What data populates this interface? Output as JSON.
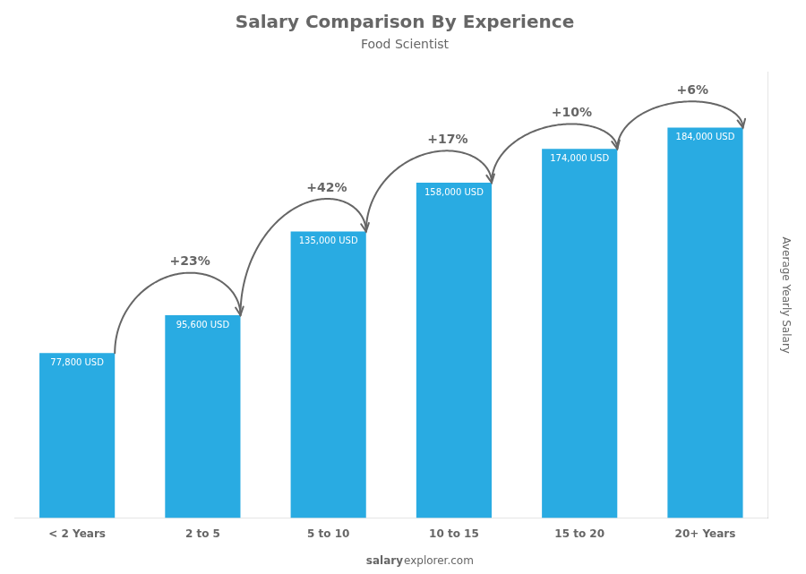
{
  "chart_data": {
    "type": "bar",
    "title": "Salary Comparison By Experience",
    "subtitle": "Food Scientist",
    "y_label": "Average Yearly Salary",
    "categories": [
      "< 2 Years",
      "2 to 5",
      "5 to 10",
      "10 to 15",
      "15 to 20",
      "20+ Years"
    ],
    "values": [
      77800,
      95600,
      135000,
      158000,
      174000,
      184000
    ],
    "value_labels": [
      "77,800 USD",
      "95,600 USD",
      "135,000 USD",
      "158,000 USD",
      "174,000 USD",
      "184,000 USD"
    ],
    "data_labels": true,
    "color": "#29ABE2",
    "ylim": [
      0,
      210000
    ],
    "tick_labels": "x",
    "grid": false,
    "annotations": [
      {
        "text": "+23%",
        "from": "< 2 Years",
        "to": "2 to 5",
        "y": 115000
      },
      {
        "text": "+42%",
        "from": "2 to 5",
        "to": "5 to 10",
        "y": 148000
      },
      {
        "text": "+17%",
        "from": "5 to 10",
        "to": "10 to 15",
        "y": 172000
      },
      {
        "text": "+10%",
        "from": "10 to 15",
        "to": "15 to 20",
        "y": 185000
      },
      {
        "text": "+6%",
        "from": "15 to 20",
        "to": "20+ Years",
        "y": 196000
      }
    ],
    "footer": [
      "salary",
      "explorer.com"
    ]
  }
}
